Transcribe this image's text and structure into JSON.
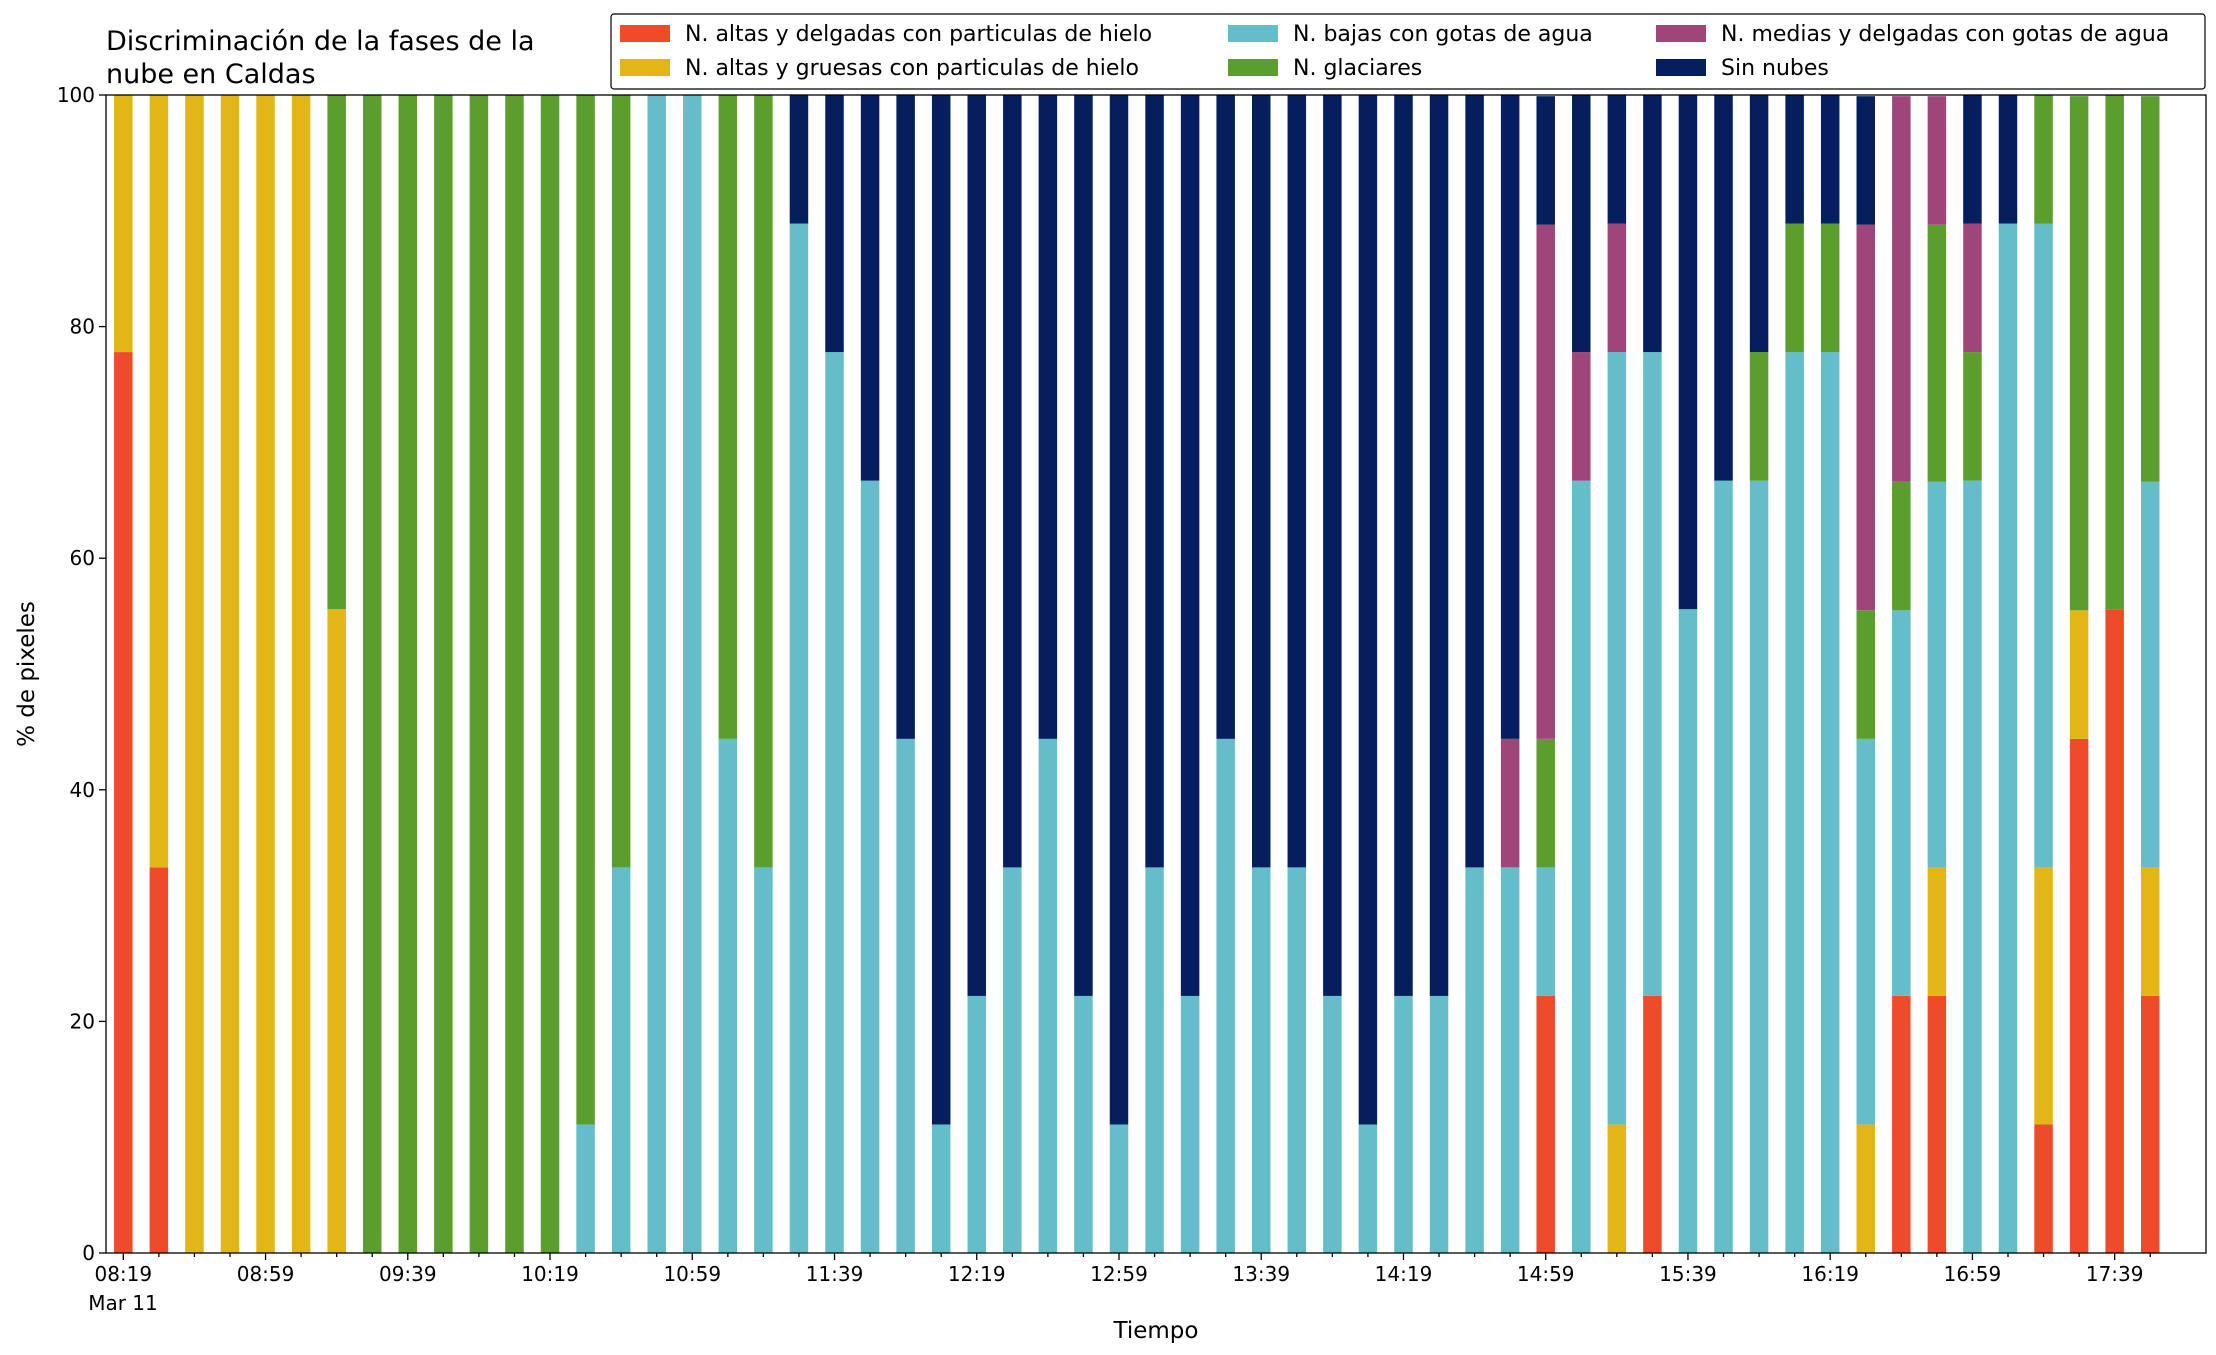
{
  "chart_data": {
    "type": "stacked_bar",
    "title": [
      "Discriminación de la fases de la",
      "nube en Caldas"
    ],
    "xlabel": "Tiempo",
    "ylabel": "% de pixeles",
    "date_label": "Mar 11",
    "categories": [
      "08:19",
      null,
      null,
      null,
      "08:59",
      null,
      null,
      null,
      "09:39",
      null,
      null,
      null,
      "10:19",
      null,
      null,
      null,
      "10:59",
      null,
      null,
      null,
      "11:39",
      null,
      null,
      null,
      "12:19",
      null,
      null,
      null,
      "12:59",
      null,
      null,
      null,
      "13:39",
      null,
      null,
      null,
      "14:19",
      null,
      null,
      null,
      "14:59",
      null,
      null,
      null,
      "15:39",
      null,
      null,
      null,
      "16:19",
      null,
      null,
      null,
      "16:59",
      null,
      null,
      null,
      "17:39",
      null
    ],
    "ylim": [
      0,
      100
    ],
    "yticks": [
      0,
      20,
      40,
      60,
      80,
      100
    ],
    "series": [
      {
        "name": "N. altas y delgadas con particulas de hielo",
        "color": "#ee4b2b",
        "values": [
          77.8,
          33.3,
          0,
          0,
          0,
          0,
          0,
          0,
          0,
          0,
          0,
          0,
          0,
          0,
          0,
          0,
          0,
          0,
          0,
          0,
          0,
          0,
          0,
          0,
          0,
          0,
          0,
          0,
          0,
          0,
          0,
          0,
          0,
          0,
          0,
          0,
          0,
          0,
          0,
          0,
          22.2,
          0,
          0,
          22.2,
          0,
          0,
          0,
          0,
          0,
          0,
          22.2,
          22.2,
          0,
          0,
          11.1,
          44.4,
          55.6,
          22.2
        ]
      },
      {
        "name": "N. altas y gruesas con particulas de hielo",
        "color": "#e3b618",
        "values": [
          22.2,
          66.7,
          100,
          100,
          100,
          100,
          55.6,
          0,
          0,
          0,
          0,
          0,
          0,
          0,
          0,
          0,
          0,
          0,
          0,
          0,
          0,
          0,
          0,
          0,
          0,
          0,
          0,
          0,
          0,
          0,
          0,
          0,
          0,
          0,
          0,
          0,
          0,
          0,
          0,
          0,
          0,
          0,
          11.1,
          0,
          0,
          0,
          0,
          0,
          0,
          11.1,
          0,
          11.1,
          0,
          0,
          22.2,
          11.1,
          0,
          11.1
        ]
      },
      {
        "name": "N. bajas con gotas de agua",
        "color": "#65bdc9",
        "values": [
          0,
          0,
          0,
          0,
          0,
          0,
          0,
          0,
          0,
          0,
          0,
          0,
          0,
          11.1,
          33.3,
          100,
          100,
          44.4,
          33.3,
          88.9,
          77.8,
          66.7,
          44.4,
          11.1,
          22.2,
          33.3,
          44.4,
          22.2,
          11.1,
          33.3,
          22.2,
          44.4,
          33.3,
          33.3,
          22.2,
          11.1,
          22.2,
          22.2,
          33.3,
          33.3,
          11.1,
          66.7,
          66.7,
          55.6,
          55.6,
          66.7,
          66.7,
          77.8,
          77.8,
          33.3,
          33.3,
          33.3,
          66.7,
          88.9,
          55.6,
          0,
          0,
          33.3
        ]
      },
      {
        "name": "N. glaciares",
        "color": "#5c9e2d",
        "values": [
          0,
          0,
          0,
          0,
          0,
          0,
          44.4,
          100,
          100,
          100,
          100,
          100,
          100,
          88.9,
          66.7,
          0,
          0,
          55.6,
          66.7,
          0,
          0,
          0,
          0,
          0,
          0,
          0,
          0,
          0,
          0,
          0,
          0,
          0,
          0,
          0,
          0,
          0,
          0,
          0,
          0,
          0,
          11.1,
          0,
          0,
          0,
          0,
          0,
          11.1,
          11.1,
          11.1,
          11.1,
          11.1,
          22.2,
          11.1,
          0,
          11.1,
          44.4,
          44.4,
          33.3
        ]
      },
      {
        "name": "N. medias y delgadas con gotas de agua",
        "color": "#a0457a",
        "values": [
          0,
          0,
          0,
          0,
          0,
          0,
          0,
          0,
          0,
          0,
          0,
          0,
          0,
          0,
          0,
          0,
          0,
          0,
          0,
          0,
          0,
          0,
          0,
          0,
          0,
          0,
          0,
          0,
          0,
          0,
          0,
          0,
          0,
          0,
          0,
          0,
          0,
          0,
          0,
          11.1,
          44.4,
          11.1,
          11.1,
          0,
          0,
          0,
          0,
          0,
          0,
          33.3,
          33.3,
          11.1,
          11.1,
          0,
          0,
          0,
          0,
          0
        ]
      },
      {
        "name": "Sin nubes",
        "color": "#041e5e",
        "values": [
          0,
          0,
          0,
          0,
          0,
          0,
          0,
          0,
          0,
          0,
          0,
          0,
          0,
          0,
          0,
          0,
          0,
          0,
          0,
          11.1,
          22.2,
          33.3,
          55.6,
          88.9,
          77.8,
          66.7,
          55.6,
          77.8,
          88.9,
          66.7,
          77.8,
          55.6,
          66.7,
          66.7,
          77.8,
          88.9,
          77.8,
          77.8,
          66.7,
          55.6,
          11.1,
          22.2,
          11.1,
          22.2,
          44.4,
          33.3,
          22.2,
          11.1,
          11.1,
          11.1,
          0,
          0,
          11.1,
          11.1,
          0,
          0,
          0,
          0
        ]
      }
    ]
  }
}
